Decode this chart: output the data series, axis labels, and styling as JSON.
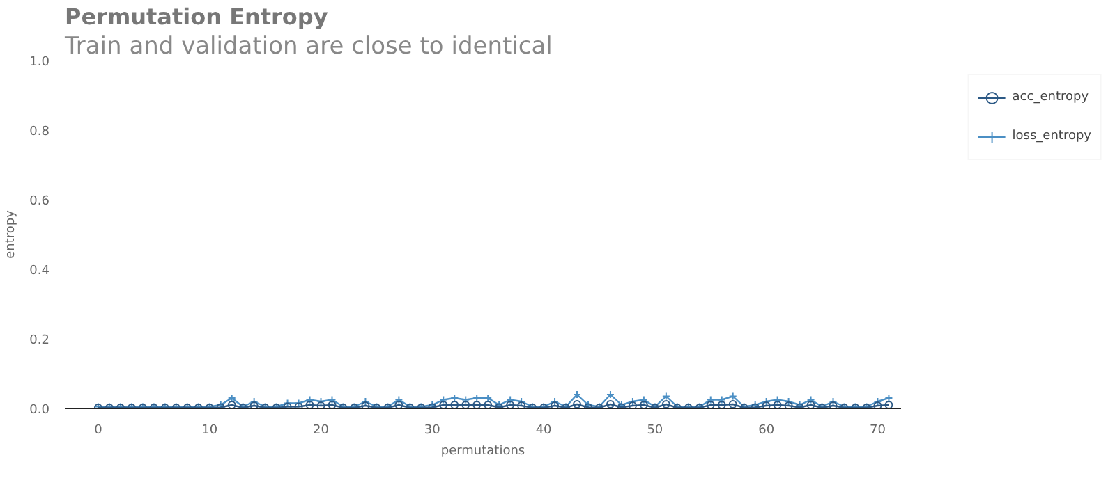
{
  "chart_data": {
    "type": "line",
    "title": "Permutation Entropy",
    "subtitle": "Train and validation are close to identical",
    "xlabel": "permutations",
    "ylabel": "entropy",
    "x": [
      0,
      1,
      2,
      3,
      4,
      5,
      6,
      7,
      8,
      9,
      10,
      11,
      12,
      13,
      14,
      15,
      16,
      17,
      18,
      19,
      20,
      21,
      22,
      23,
      24,
      25,
      26,
      27,
      28,
      29,
      30,
      31,
      32,
      33,
      34,
      35,
      36,
      37,
      38,
      39,
      40,
      41,
      42,
      43,
      44,
      45,
      46,
      47,
      48,
      49,
      50,
      51,
      52,
      53,
      54,
      55,
      56,
      57,
      58,
      59,
      60,
      61,
      62,
      63,
      64,
      65,
      66,
      67,
      68,
      69,
      70,
      71
    ],
    "series": [
      {
        "name": "acc_entropy",
        "color": "#2c5985",
        "marker": "circle",
        "values": [
          0.002,
          0.002,
          0.002,
          0.002,
          0.002,
          0.002,
          0.002,
          0.002,
          0.002,
          0.002,
          0.002,
          0.003,
          0.01,
          0.002,
          0.008,
          0.002,
          0.002,
          0.005,
          0.005,
          0.01,
          0.008,
          0.01,
          0.002,
          0.002,
          0.008,
          0.002,
          0.002,
          0.01,
          0.002,
          0.002,
          0.003,
          0.01,
          0.01,
          0.01,
          0.01,
          0.01,
          0.003,
          0.01,
          0.008,
          0.002,
          0.002,
          0.008,
          0.002,
          0.012,
          0.003,
          0.002,
          0.012,
          0.003,
          0.008,
          0.01,
          0.002,
          0.012,
          0.002,
          0.002,
          0.002,
          0.01,
          0.01,
          0.012,
          0.002,
          0.003,
          0.008,
          0.01,
          0.008,
          0.003,
          0.01,
          0.002,
          0.008,
          0.002,
          0.002,
          0.002,
          0.008,
          0.01
        ]
      },
      {
        "name": "loss_entropy",
        "color": "#4b8fc4",
        "marker": "cross",
        "values": [
          0.005,
          0.005,
          0.005,
          0.005,
          0.005,
          0.005,
          0.005,
          0.005,
          0.005,
          0.005,
          0.005,
          0.01,
          0.03,
          0.005,
          0.02,
          0.005,
          0.005,
          0.015,
          0.015,
          0.025,
          0.02,
          0.025,
          0.005,
          0.005,
          0.02,
          0.005,
          0.005,
          0.025,
          0.005,
          0.005,
          0.01,
          0.025,
          0.03,
          0.025,
          0.03,
          0.03,
          0.01,
          0.025,
          0.02,
          0.005,
          0.005,
          0.02,
          0.005,
          0.04,
          0.01,
          0.005,
          0.04,
          0.01,
          0.02,
          0.025,
          0.005,
          0.035,
          0.005,
          0.005,
          0.005,
          0.025,
          0.025,
          0.035,
          0.005,
          0.01,
          0.02,
          0.025,
          0.02,
          0.01,
          0.025,
          0.005,
          0.02,
          0.005,
          0.005,
          0.005,
          0.02,
          0.03
        ]
      }
    ],
    "xlim": [
      -3,
      72.1
    ],
    "ylim": [
      0,
      1
    ],
    "xticks": [
      0,
      10,
      20,
      30,
      40,
      50,
      60,
      70
    ],
    "yticks": [
      {
        "value": 0,
        "label": "0.0"
      },
      {
        "value": 0.2,
        "label": "0.2"
      },
      {
        "value": 0.4,
        "label": "0.4"
      },
      {
        "value": 0.6,
        "label": "0.6"
      },
      {
        "value": 0.8,
        "label": "0.8"
      },
      {
        "value": 1,
        "label": "1.0"
      }
    ],
    "grid": false,
    "legend": "top right",
    "line_style": "solid"
  }
}
